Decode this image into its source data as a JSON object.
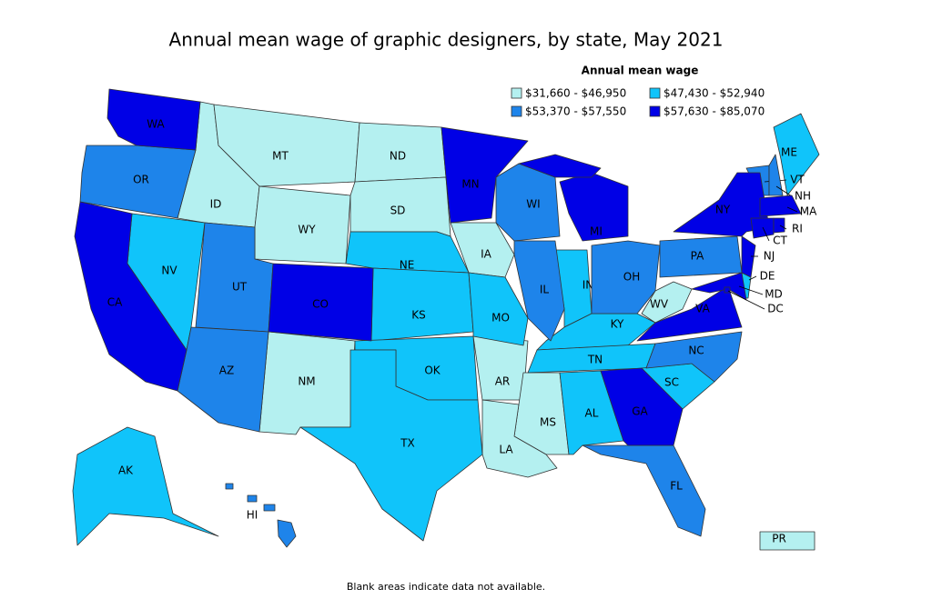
{
  "title": "Annual mean wage of graphic designers, by state, May 2021",
  "legend": {
    "title": "Annual mean wage",
    "bins": [
      {
        "label": "$31,660 - $46,950",
        "color": "#b4f0f0",
        "states": [
          "ID",
          "MT",
          "WY",
          "ND",
          "SD",
          "NM",
          "IA",
          "AR",
          "MS",
          "LA",
          "WV",
          "PR"
        ]
      },
      {
        "label": "$47,430 - $52,940",
        "color": "#10c4fa",
        "states": [
          "NV",
          "NE",
          "KS",
          "OK",
          "TX",
          "MO",
          "IN",
          "KY",
          "TN",
          "AL",
          "SC",
          "AK",
          "ME",
          "DE"
        ]
      },
      {
        "label": "$53,370 - $57,550",
        "color": "#1e84ea",
        "states": [
          "OR",
          "UT",
          "AZ",
          "WI",
          "IL",
          "OH",
          "PA",
          "NC",
          "FL",
          "HI",
          "VT",
          "NH"
        ]
      },
      {
        "label": "$57,630 - $85,070",
        "color": "#0000e6",
        "states": [
          "WA",
          "CA",
          "CO",
          "MN",
          "MI",
          "GA",
          "VA",
          "NY",
          "NJ",
          "MD",
          "MA",
          "CT",
          "RI",
          "DC"
        ]
      }
    ]
  },
  "footnote": "Blank areas indicate data not available."
}
